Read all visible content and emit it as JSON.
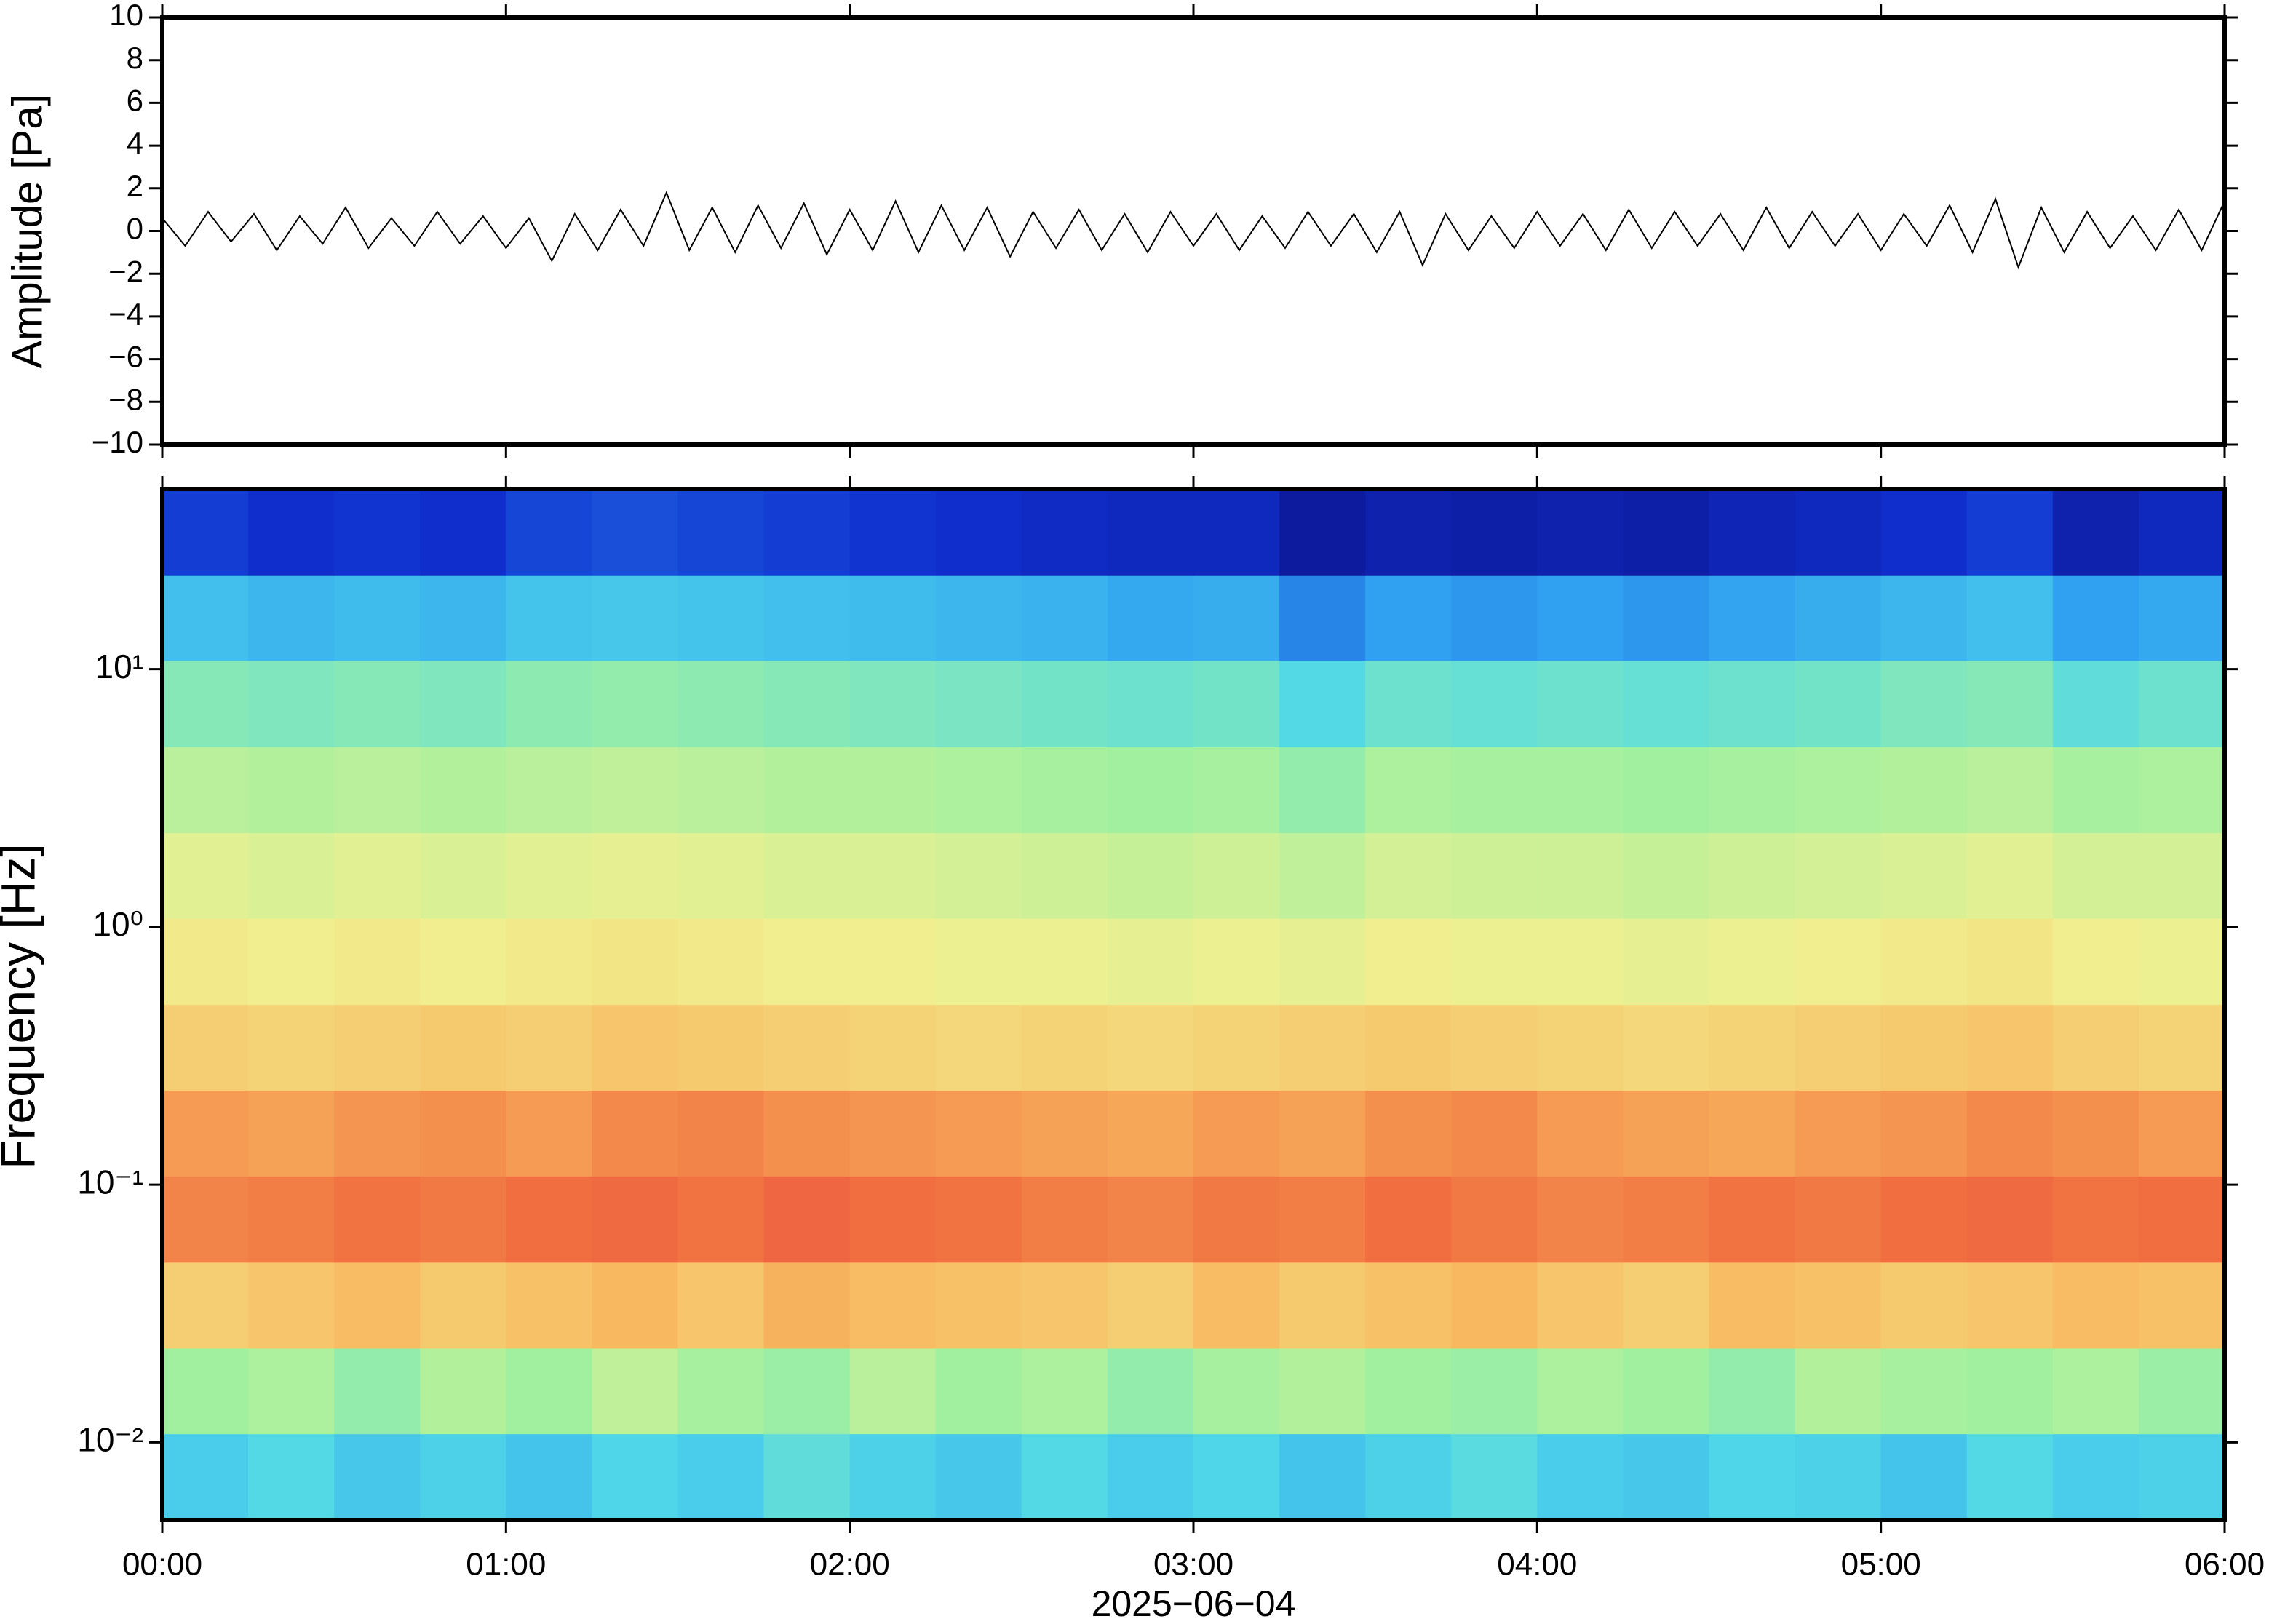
{
  "chart_data": [
    {
      "type": "line",
      "ylabel": "Amplitude [Pa]",
      "color": "#000000",
      "xlim": [
        0,
        360
      ],
      "xticks": [
        0,
        60,
        120,
        180,
        240,
        300,
        360
      ],
      "ylim": [
        -10,
        10
      ],
      "yticks": [
        {
          "value": -10,
          "label": "−10"
        },
        {
          "value": -8,
          "label": "−8"
        },
        {
          "value": -6,
          "label": "−6"
        },
        {
          "value": -4,
          "label": "−4"
        },
        {
          "value": -2,
          "label": "−2"
        },
        0,
        2,
        4,
        6,
        8,
        10
      ],
      "x": [
        0,
        4,
        8,
        12,
        16,
        20,
        24,
        28,
        32,
        36,
        40,
        44,
        48,
        52,
        56,
        60,
        64,
        68,
        72,
        76,
        80,
        84,
        88,
        92,
        96,
        100,
        104,
        108,
        112,
        116,
        120,
        124,
        128,
        132,
        136,
        140,
        144,
        148,
        152,
        156,
        160,
        164,
        168,
        172,
        176,
        180,
        184,
        188,
        192,
        196,
        200,
        204,
        208,
        212,
        216,
        220,
        224,
        228,
        232,
        236,
        240,
        244,
        248,
        252,
        256,
        260,
        264,
        268,
        272,
        276,
        280,
        284,
        288,
        292,
        296,
        300,
        304,
        308,
        312,
        316,
        320,
        324,
        328,
        332,
        336,
        340,
        344,
        348,
        352,
        356,
        360
      ],
      "values": [
        0.6,
        -0.7,
        0.9,
        -0.5,
        0.8,
        -0.9,
        0.7,
        -0.6,
        1.1,
        -0.8,
        0.6,
        -0.7,
        0.9,
        -0.6,
        0.7,
        -0.8,
        0.6,
        -1.4,
        0.8,
        -0.9,
        1.0,
        -0.7,
        1.8,
        -0.9,
        1.1,
        -1.0,
        1.2,
        -0.8,
        1.3,
        -1.1,
        1.0,
        -0.9,
        1.4,
        -1.0,
        1.2,
        -0.9,
        1.1,
        -1.2,
        0.9,
        -0.8,
        1.0,
        -0.9,
        0.8,
        -1.0,
        0.9,
        -0.7,
        0.8,
        -0.9,
        0.7,
        -0.8,
        0.9,
        -0.7,
        0.8,
        -1.0,
        0.9,
        -1.6,
        0.8,
        -0.9,
        0.7,
        -0.8,
        0.9,
        -0.7,
        0.8,
        -0.9,
        1.0,
        -0.8,
        0.9,
        -0.7,
        0.8,
        -0.9,
        1.1,
        -0.8,
        0.9,
        -0.7,
        0.8,
        -0.9,
        0.8,
        -0.7,
        1.2,
        -1.0,
        1.5,
        -1.7,
        1.1,
        -1.0,
        0.9,
        -0.8,
        0.7,
        -0.9,
        1.0,
        -0.9,
        1.4
      ]
    },
    {
      "type": "heatmap",
      "ylabel": "Frequency [Hz]",
      "xlabel": "2025−06−04",
      "yscale": "log",
      "xlim": [
        0,
        360
      ],
      "xticks": [
        {
          "value": 0,
          "label": "00:00"
        },
        {
          "value": 60,
          "label": "01:00"
        },
        {
          "value": 120,
          "label": "02:00"
        },
        {
          "value": 180,
          "label": "03:00"
        },
        {
          "value": 240,
          "label": "04:00"
        },
        {
          "value": 300,
          "label": "05:00"
        },
        {
          "value": 360,
          "label": "06:00"
        }
      ],
      "ylim": [
        0.005,
        50
      ],
      "yticks": [
        {
          "value": 0.01,
          "label": "10⁻²"
        },
        {
          "value": 0.1,
          "label": "10⁻¹"
        },
        {
          "value": 1,
          "label": "10⁰"
        },
        {
          "value": 10,
          "label": "10¹"
        }
      ],
      "colormap": [
        "#0a0a70",
        "#1030d0",
        "#30a0f0",
        "#50d8e8",
        "#a0f0a0",
        "#f0f090",
        "#f8b860",
        "#f07040",
        "#e84048"
      ],
      "time_bins": [
        0,
        15,
        30,
        45,
        60,
        75,
        90,
        105,
        120,
        135,
        150,
        165,
        180,
        195,
        210,
        225,
        240,
        255,
        270,
        285,
        300,
        315,
        330,
        345,
        360
      ],
      "frequency_bins": [
        0.005,
        0.0108,
        0.0232,
        0.05,
        0.108,
        0.232,
        0.5,
        1.08,
        2.32,
        5,
        10.8,
        23.2,
        50
      ],
      "z": [
        [
          0.35,
          0.38,
          0.34,
          0.36,
          0.33,
          0.37,
          0.35,
          0.4,
          0.36,
          0.34,
          0.38,
          0.35,
          0.37,
          0.33,
          0.36,
          0.39,
          0.35,
          0.34,
          0.37,
          0.36,
          0.33,
          0.38,
          0.35,
          0.36
        ],
        [
          0.5,
          0.52,
          0.48,
          0.53,
          0.5,
          0.55,
          0.51,
          0.49,
          0.54,
          0.5,
          0.52,
          0.48,
          0.51,
          0.53,
          0.5,
          0.49,
          0.52,
          0.5,
          0.48,
          0.53,
          0.51,
          0.5,
          0.52,
          0.49
        ],
        [
          0.7,
          0.72,
          0.74,
          0.71,
          0.73,
          0.75,
          0.72,
          0.76,
          0.74,
          0.73,
          0.72,
          0.7,
          0.74,
          0.71,
          0.73,
          0.75,
          0.72,
          0.7,
          0.74,
          0.73,
          0.71,
          0.72,
          0.74,
          0.73
        ],
        [
          0.84,
          0.85,
          0.87,
          0.86,
          0.88,
          0.89,
          0.87,
          0.9,
          0.88,
          0.87,
          0.85,
          0.84,
          0.86,
          0.85,
          0.88,
          0.86,
          0.84,
          0.85,
          0.87,
          0.86,
          0.88,
          0.89,
          0.87,
          0.88
        ],
        [
          0.8,
          0.79,
          0.81,
          0.82,
          0.8,
          0.83,
          0.84,
          0.82,
          0.81,
          0.8,
          0.79,
          0.78,
          0.8,
          0.79,
          0.82,
          0.83,
          0.8,
          0.79,
          0.78,
          0.8,
          0.81,
          0.83,
          0.82,
          0.8
        ],
        [
          0.7,
          0.69,
          0.7,
          0.71,
          0.7,
          0.72,
          0.71,
          0.7,
          0.69,
          0.68,
          0.69,
          0.68,
          0.69,
          0.7,
          0.71,
          0.7,
          0.69,
          0.68,
          0.69,
          0.7,
          0.71,
          0.72,
          0.7,
          0.69
        ],
        [
          0.64,
          0.63,
          0.64,
          0.63,
          0.64,
          0.65,
          0.64,
          0.63,
          0.63,
          0.62,
          0.62,
          0.61,
          0.62,
          0.61,
          0.63,
          0.62,
          0.62,
          0.61,
          0.62,
          0.63,
          0.64,
          0.65,
          0.63,
          0.62
        ],
        [
          0.6,
          0.59,
          0.6,
          0.59,
          0.6,
          0.61,
          0.6,
          0.59,
          0.59,
          0.58,
          0.57,
          0.56,
          0.57,
          0.55,
          0.58,
          0.57,
          0.57,
          0.56,
          0.57,
          0.58,
          0.59,
          0.6,
          0.58,
          0.58
        ],
        [
          0.54,
          0.53,
          0.54,
          0.53,
          0.54,
          0.55,
          0.54,
          0.53,
          0.53,
          0.52,
          0.51,
          0.5,
          0.51,
          0.48,
          0.52,
          0.51,
          0.51,
          0.5,
          0.51,
          0.52,
          0.53,
          0.54,
          0.51,
          0.52
        ],
        [
          0.46,
          0.45,
          0.46,
          0.45,
          0.47,
          0.48,
          0.47,
          0.46,
          0.45,
          0.44,
          0.43,
          0.42,
          0.43,
          0.38,
          0.42,
          0.41,
          0.42,
          0.41,
          0.42,
          0.43,
          0.45,
          0.46,
          0.4,
          0.42
        ],
        [
          0.32,
          0.3,
          0.31,
          0.3,
          0.33,
          0.34,
          0.33,
          0.32,
          0.31,
          0.3,
          0.29,
          0.27,
          0.28,
          0.22,
          0.25,
          0.24,
          0.25,
          0.24,
          0.26,
          0.28,
          0.3,
          0.32,
          0.25,
          0.27
        ],
        [
          0.14,
          0.12,
          0.13,
          0.12,
          0.15,
          0.16,
          0.15,
          0.14,
          0.13,
          0.12,
          0.11,
          0.1,
          0.1,
          0.06,
          0.08,
          0.07,
          0.08,
          0.07,
          0.09,
          0.1,
          0.12,
          0.14,
          0.08,
          0.1
        ]
      ]
    }
  ]
}
